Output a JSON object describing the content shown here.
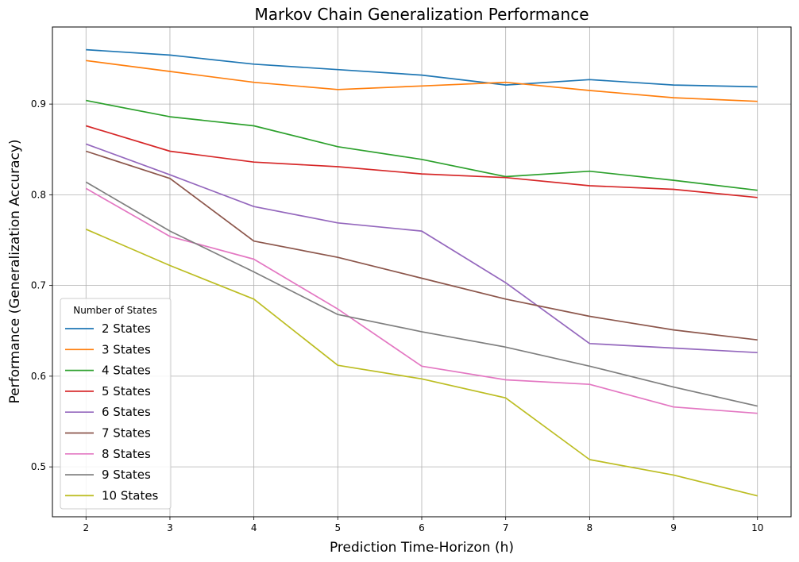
{
  "chart_data": {
    "type": "line",
    "title": "Markov Chain Generalization Performance",
    "xlabel": "Prediction Time-Horizon (h)",
    "ylabel": "Performance (Generalization Accuracy)",
    "x": [
      2,
      3,
      4,
      5,
      6,
      7,
      8,
      9,
      10
    ],
    "xlim": [
      1.6,
      10.4
    ],
    "ylim": [
      0.445,
      0.985
    ],
    "xticks": [
      "2",
      "3",
      "4",
      "5",
      "6",
      "7",
      "8",
      "9",
      "10"
    ],
    "yticks": [
      {
        "value": 0.5,
        "label": "0.5"
      },
      {
        "value": 0.6,
        "label": "0.6"
      },
      {
        "value": 0.7,
        "label": "0.7"
      },
      {
        "value": 0.8,
        "label": "0.8"
      },
      {
        "value": 0.9,
        "label": "0.9"
      }
    ],
    "grid": true,
    "legend": {
      "title": "Number of States",
      "position": "lower-left"
    },
    "series": [
      {
        "name": "2 States",
        "color": "#1f77b4",
        "values": [
          0.96,
          0.954,
          0.944,
          0.938,
          0.932,
          0.921,
          0.927,
          0.921,
          0.919
        ]
      },
      {
        "name": "3 States",
        "color": "#ff7f0e",
        "values": [
          0.948,
          0.936,
          0.924,
          0.916,
          0.92,
          0.924,
          0.915,
          0.907,
          0.903
        ]
      },
      {
        "name": "4 States",
        "color": "#2ca02c",
        "values": [
          0.904,
          0.886,
          0.876,
          0.853,
          0.839,
          0.82,
          0.826,
          0.816,
          0.805
        ]
      },
      {
        "name": "5 States",
        "color": "#d62728",
        "values": [
          0.876,
          0.848,
          0.836,
          0.831,
          0.823,
          0.819,
          0.81,
          0.806,
          0.797
        ]
      },
      {
        "name": "6 States",
        "color": "#9467bd",
        "values": [
          0.856,
          0.822,
          0.787,
          0.769,
          0.76,
          0.703,
          0.636,
          0.631,
          0.626
        ]
      },
      {
        "name": "7 States",
        "color": "#8c564b",
        "values": [
          0.848,
          0.818,
          0.749,
          0.731,
          0.708,
          0.685,
          0.666,
          0.651,
          0.64
        ]
      },
      {
        "name": "8 States",
        "color": "#e377c2",
        "values": [
          0.807,
          0.754,
          0.729,
          0.674,
          0.611,
          0.596,
          0.591,
          0.566,
          0.559
        ]
      },
      {
        "name": "9 States",
        "color": "#7f7f7f",
        "values": [
          0.814,
          0.76,
          0.715,
          0.668,
          0.649,
          0.632,
          0.611,
          0.588,
          0.567
        ]
      },
      {
        "name": "10 States",
        "color": "#bcbd22",
        "values": [
          0.762,
          0.722,
          0.685,
          0.612,
          0.597,
          0.576,
          0.508,
          0.491,
          0.468
        ]
      }
    ]
  }
}
